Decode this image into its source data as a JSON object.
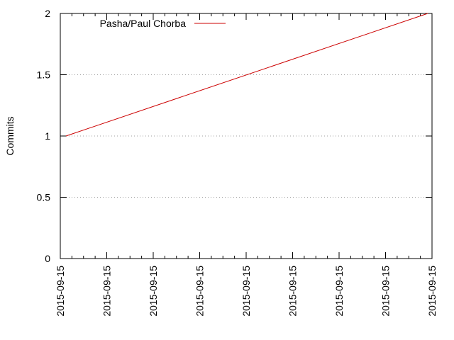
{
  "chart_data": {
    "type": "line",
    "title": "",
    "xlabel": "",
    "ylabel": "Commits",
    "ylim": [
      0,
      2
    ],
    "yticks": [
      {
        "value": 0,
        "label": "0"
      },
      {
        "value": 0.5,
        "label": "0.5"
      },
      {
        "value": 1,
        "label": "1"
      },
      {
        "value": 1.5,
        "label": "1.5"
      },
      {
        "value": 2,
        "label": "2"
      }
    ],
    "xtick_labels": [
      "2015-09-15",
      "2015-09-15",
      "2015-09-15",
      "2015-09-15",
      "2015-09-15",
      "2015-09-15",
      "2015-09-15",
      "2015-09-15",
      "2015-09-15"
    ],
    "grid": "horizontal dotted",
    "legend_position": "top-left",
    "series": [
      {
        "name": "Pasha/Paul Chorba",
        "color": "#cc0000",
        "points": [
          {
            "x": "2015-09-15",
            "y": 1
          },
          {
            "x": "2015-09-15",
            "y": 2
          }
        ]
      }
    ]
  }
}
